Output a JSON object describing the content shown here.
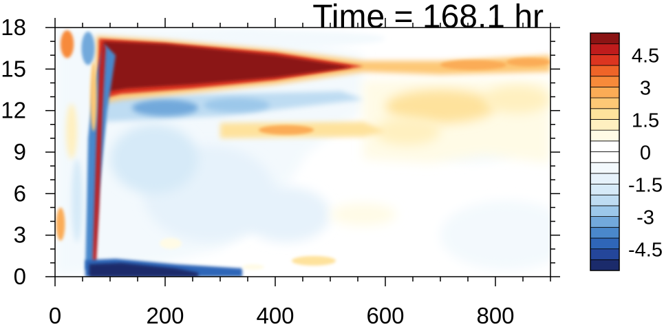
{
  "chart_data": {
    "type": "heatmap",
    "title": "Time = 168.1 hr",
    "xlabel": "",
    "ylabel": "",
    "xlim": [
      0,
      900
    ],
    "ylim": [
      0,
      18
    ],
    "x_ticks": [
      0,
      200,
      400,
      600,
      800
    ],
    "y_ticks": [
      0,
      3,
      6,
      9,
      12,
      15,
      18
    ],
    "grid": false,
    "legend": "right",
    "colorbar": {
      "min": -5.5,
      "max": 5.5,
      "step": 0.5,
      "labeled_ticks": [
        4.5,
        3,
        1.5,
        0,
        -1.5,
        -3,
        -4.5
      ],
      "colors": [
        "#1b2b6b",
        "#24469a",
        "#2f66b8",
        "#4a88cb",
        "#72a9db",
        "#9cc8ea",
        "#bedcf2",
        "#d6eaf8",
        "#e6f2fb",
        "#f3f9fd",
        "#ffffff",
        "#ffffff",
        "#fffbe6",
        "#fff0c0",
        "#fee29c",
        "#fdc876",
        "#fbac56",
        "#f78a3a",
        "#ef6428",
        "#dc3520",
        "#bf1c1c",
        "#8b1414"
      ]
    },
    "features": [
      {
        "name": "upper positive jet",
        "x_range": [
          80,
          560
        ],
        "y_range": [
          12.5,
          17
        ],
        "value": 6
      },
      {
        "name": "positive tongue along x",
        "x_range": [
          560,
          900
        ],
        "y_range": [
          14.8,
          15.8
        ],
        "value": 2.5
      },
      {
        "name": "mid positive band",
        "x_range": [
          300,
          560
        ],
        "y_range": [
          10,
          11
        ],
        "value": 2.5
      },
      {
        "name": "positive area right",
        "x_range": [
          560,
          900
        ],
        "y_range": [
          8,
          14
        ],
        "value": 1
      },
      {
        "name": "negative band below jet",
        "x_range": [
          80,
          500
        ],
        "y_range": [
          11,
          13
        ],
        "value": -2.5
      },
      {
        "name": "negative near surface",
        "x_range": [
          60,
          340
        ],
        "y_range": [
          0,
          1.2
        ],
        "value": -5
      },
      {
        "name": "negative vertical strip",
        "x_range": [
          50,
          110
        ],
        "y_range": [
          0,
          16
        ],
        "value": -4.5
      },
      {
        "name": "positive vertical strip",
        "x_range": [
          60,
          80
        ],
        "y_range": [
          0,
          17
        ],
        "value": 5
      },
      {
        "name": "positive near surface",
        "x_range": [
          430,
          520
        ],
        "y_range": [
          0.8,
          1.5
        ],
        "value": 2
      }
    ]
  }
}
